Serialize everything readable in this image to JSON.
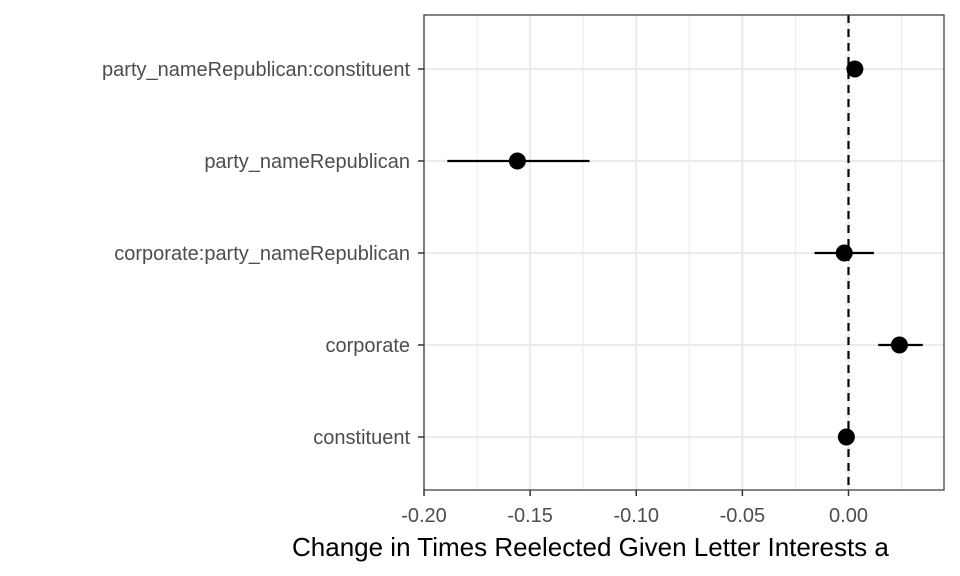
{
  "chart_data": {
    "type": "scatter",
    "orientation": "horizontal",
    "title": "",
    "xlabel": "Change in Times Reelected Given Letter Interests a",
    "ylabel": "",
    "xlim": [
      -0.2,
      0.045
    ],
    "x_ticks": [
      -0.2,
      -0.15,
      -0.1,
      -0.05,
      0.0
    ],
    "x_tick_labels": [
      "-0.20",
      "-0.15",
      "-0.10",
      "-0.05",
      "0.00"
    ],
    "reference_line": {
      "x": 0,
      "style": "dashed"
    },
    "grid": true,
    "legend": "none",
    "categories": [
      "party_nameRepublican:constituent",
      "party_nameRepublican",
      "corporate:party_nameRepublican",
      "corporate",
      "constituent"
    ],
    "points": [
      {
        "term": "party_nameRepublican:constituent",
        "estimate": 0.003,
        "lower": 0.003,
        "upper": 0.003
      },
      {
        "term": "party_nameRepublican",
        "estimate": -0.156,
        "lower": -0.189,
        "upper": -0.122
      },
      {
        "term": "corporate:party_nameRepublican",
        "estimate": -0.002,
        "lower": -0.016,
        "upper": 0.012
      },
      {
        "term": "corporate",
        "estimate": 0.024,
        "lower": 0.014,
        "upper": 0.035
      },
      {
        "term": "constituent",
        "estimate": -0.001,
        "lower": -0.001,
        "upper": -0.001
      }
    ],
    "colors": {
      "point": "#000000",
      "grid": "#ebebeb",
      "panel_border": "#333333",
      "tick_label": "#4d4d4d"
    }
  }
}
